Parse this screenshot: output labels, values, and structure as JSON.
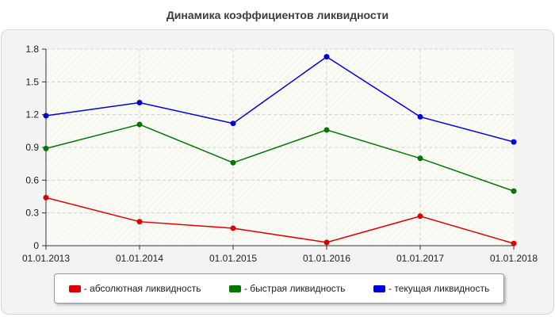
{
  "chart_data": {
    "type": "line",
    "title": "Динамика коэффициентов ликвидности",
    "xlabel": "",
    "ylabel": "",
    "categories": [
      "01.01.2013",
      "01.01.2014",
      "01.01.2015",
      "01.01.2016",
      "01.01.2017",
      "01.01.2018"
    ],
    "y_ticks": [
      "0",
      "0.3",
      "0.6",
      "0.9",
      "1.2",
      "1.5",
      "1.8"
    ],
    "ylim": [
      0,
      1.8
    ],
    "grid": true,
    "legend_position": "bottom",
    "series": [
      {
        "name": "- абсолютная ликвидность",
        "color": "#dd0000",
        "values": [
          0.44,
          0.22,
          0.16,
          0.03,
          0.27,
          0.02
        ]
      },
      {
        "name": "- быстрая ликвидность",
        "color": "#007700",
        "values": [
          0.89,
          1.11,
          0.76,
          1.06,
          0.8,
          0.5
        ]
      },
      {
        "name": "- текущая ликвидность",
        "color": "#0000dd",
        "values": [
          1.19,
          1.31,
          1.12,
          1.73,
          1.18,
          0.95
        ]
      }
    ]
  }
}
